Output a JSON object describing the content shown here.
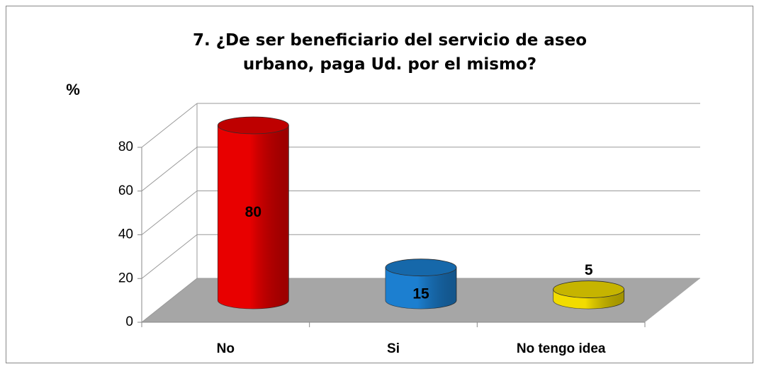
{
  "chart_data": {
    "type": "bar3d_cylinder",
    "title": "7. ¿De ser beneficiario del servicio de aseo urbano, paga Ud. por el mismo?",
    "y_label": "%",
    "categories": [
      "No",
      "Si",
      "No tengo idea"
    ],
    "values": [
      80,
      15,
      5
    ],
    "colors": [
      "#e80000",
      "#1c7fd0",
      "#f2dc00"
    ],
    "ylim": [
      0,
      80
    ],
    "yticks": [
      0,
      20,
      40,
      60,
      80
    ],
    "grid": true
  }
}
